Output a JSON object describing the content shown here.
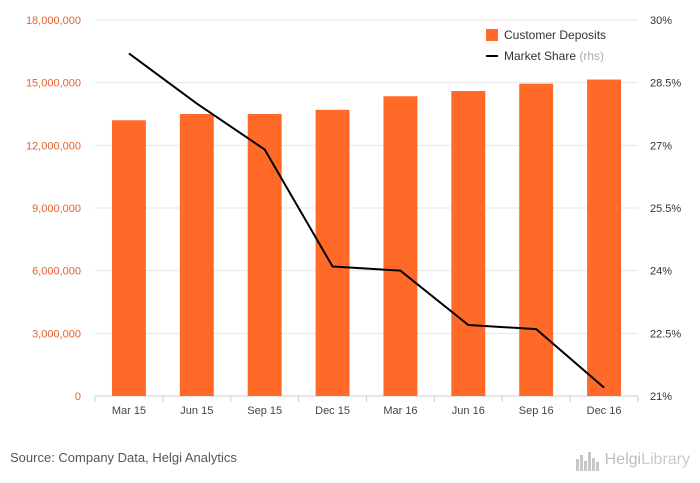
{
  "chart_data": {
    "type": "bar",
    "categories": [
      "Mar 15",
      "Jun 15",
      "Sep 15",
      "Dec 15",
      "Mar 16",
      "Jun 16",
      "Sep 16",
      "Dec 16"
    ],
    "series": [
      {
        "name": "Customer Deposits",
        "type": "bar",
        "axis": "left",
        "values": [
          13200000,
          13500000,
          13500000,
          13700000,
          14350000,
          14600000,
          14950000,
          15150000
        ]
      },
      {
        "name": "Market Share",
        "legend_suffix": "(rhs)",
        "type": "line",
        "axis": "right",
        "values": [
          29.2,
          28.0,
          26.9,
          24.1,
          24.0,
          22.7,
          22.6,
          21.2
        ]
      }
    ],
    "y_left": {
      "ylim": [
        0,
        18000000
      ],
      "ticks": [
        0,
        3000000,
        6000000,
        9000000,
        12000000,
        15000000,
        18000000
      ],
      "tick_labels": [
        "0",
        "3,000,000",
        "6,000,000",
        "9,000,000",
        "12,000,000",
        "15,000,000",
        "18,000,000"
      ]
    },
    "y_right": {
      "ylim": [
        21,
        30
      ],
      "ticks": [
        21,
        22.5,
        24,
        25.5,
        27,
        28.5,
        30
      ],
      "tick_labels": [
        "21%",
        "22.5%",
        "24%",
        "25.5%",
        "27%",
        "28.5%",
        "30%"
      ]
    },
    "grid": true,
    "legend_position": "top-right",
    "colors": {
      "bar": "#ff6a28",
      "line": "#000000",
      "left_tick": "#e8622a",
      "right_tick": "#333333",
      "category_tick": "#444444",
      "grid": "#e6e6e6",
      "legend_suffix": "#aaaaaa"
    }
  },
  "footer": {
    "source": "Source: Company Data, Helgi Analytics",
    "brand_part1": "Helgi",
    "brand_part2": "Library",
    "brand_icon": "city-skyline-icon"
  }
}
